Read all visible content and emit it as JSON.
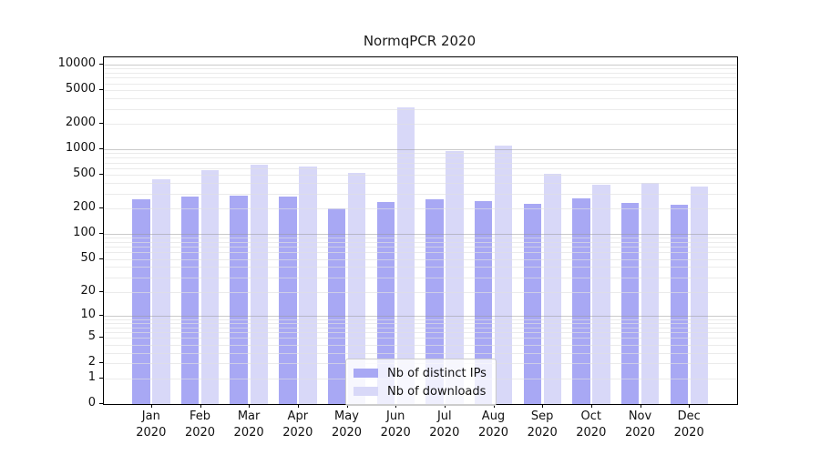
{
  "title": "NormqPCR 2020",
  "chart_data": {
    "type": "bar",
    "title": "NormqPCR 2020",
    "yscale": "log1p",
    "grid": true,
    "legend_position": "lower center",
    "categories": [
      "Jan",
      "Feb",
      "Mar",
      "Apr",
      "May",
      "Jun",
      "Jul",
      "Aug",
      "Sep",
      "Oct",
      "Nov",
      "Dec"
    ],
    "category_year": "2020",
    "yticks": [
      0,
      1,
      2,
      5,
      10,
      20,
      50,
      100,
      200,
      500,
      1000,
      2000,
      5000,
      10000
    ],
    "ylim": [
      0,
      12000
    ],
    "xlabel": "",
    "ylabel": "",
    "series": [
      {
        "name": "Nb of distinct IPs",
        "color": "#a8a8f4",
        "values": [
          259,
          277,
          282,
          277,
          203,
          239,
          255,
          245,
          229,
          265,
          235,
          220
        ]
      },
      {
        "name": "Nb of downloads",
        "color": "#d8d8f8",
        "values": [
          447,
          567,
          665,
          630,
          525,
          3100,
          950,
          1100,
          520,
          385,
          400,
          365
        ]
      }
    ],
    "colors": {
      "axis": "#000000",
      "major_grid": "#c6c6c6",
      "minor_grid": "#e9e9e9",
      "background": "#ffffff"
    }
  }
}
